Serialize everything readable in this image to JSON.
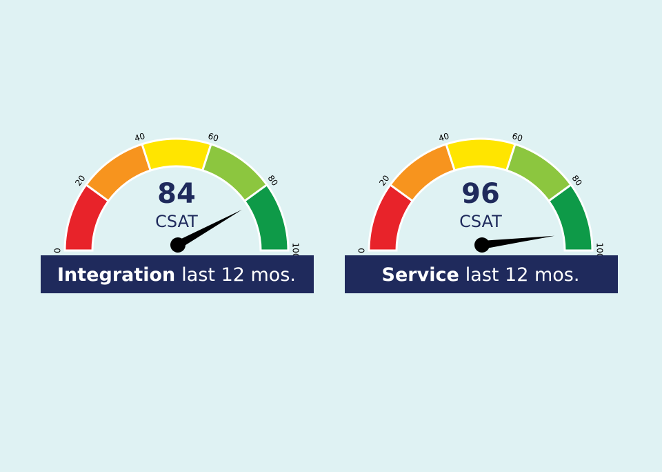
{
  "chart_data": [
    {
      "type": "gauge",
      "title": "Integration",
      "subtitle": "last 12 mos.",
      "label": "CSAT",
      "value": 84,
      "range": [
        0,
        100
      ],
      "ticks": [
        0,
        20,
        40,
        60,
        80,
        100
      ],
      "needle_color": "#000000",
      "bands": [
        {
          "from": 0,
          "to": 20,
          "color": "#e8232a"
        },
        {
          "from": 20,
          "to": 40,
          "color": "#f7941e"
        },
        {
          "from": 40,
          "to": 60,
          "color": "#ffe500"
        },
        {
          "from": 60,
          "to": 80,
          "color": "#8cc63f"
        },
        {
          "from": 80,
          "to": 100,
          "color": "#0e9a48"
        }
      ]
    },
    {
      "type": "gauge",
      "title": "Service",
      "subtitle": "last 12 mos.",
      "label": "CSAT",
      "value": 96,
      "range": [
        0,
        100
      ],
      "ticks": [
        0,
        20,
        40,
        60,
        80,
        100
      ],
      "needle_color": "#000000",
      "bands": [
        {
          "from": 0,
          "to": 20,
          "color": "#e8232a"
        },
        {
          "from": 20,
          "to": 40,
          "color": "#f7941e"
        },
        {
          "from": 40,
          "to": 60,
          "color": "#ffe500"
        },
        {
          "from": 60,
          "to": 80,
          "color": "#8cc63f"
        },
        {
          "from": 80,
          "to": 100,
          "color": "#0e9a48"
        }
      ]
    }
  ]
}
